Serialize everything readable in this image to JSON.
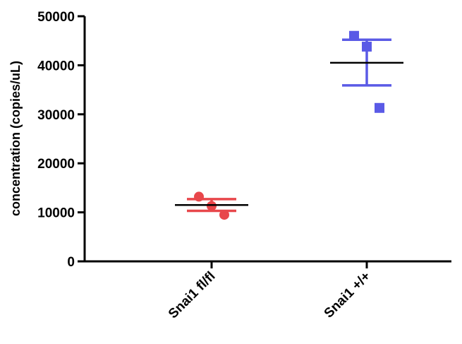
{
  "chart_data": {
    "type": "scatter",
    "title": "",
    "xlabel": "",
    "ylabel": "concentration (copies/uL)",
    "ylim": [
      0,
      50000
    ],
    "yticks": [
      0,
      10000,
      20000,
      30000,
      40000,
      50000
    ],
    "ytick_labels": [
      "0",
      "10000",
      "20000",
      "30000",
      "40000",
      "50000"
    ],
    "grid": false,
    "legend": "none",
    "categories": [
      "Snai1 fl/fl",
      "Snai1 +/+"
    ],
    "series": [
      {
        "category": "Snai1 fl/fl",
        "marker": "circle",
        "color": "#e8474b",
        "points": [
          13200,
          11300,
          9500
        ],
        "mean": 11500,
        "error_upper": 12700,
        "error_lower": 10300
      },
      {
        "category": "Snai1 +/+",
        "marker": "square",
        "color": "#5a5ae6",
        "points": [
          46000,
          43800,
          31300
        ],
        "mean": 40500,
        "error_upper": 45200,
        "error_lower": 35900
      }
    ],
    "mean_line_color": "#000000"
  }
}
